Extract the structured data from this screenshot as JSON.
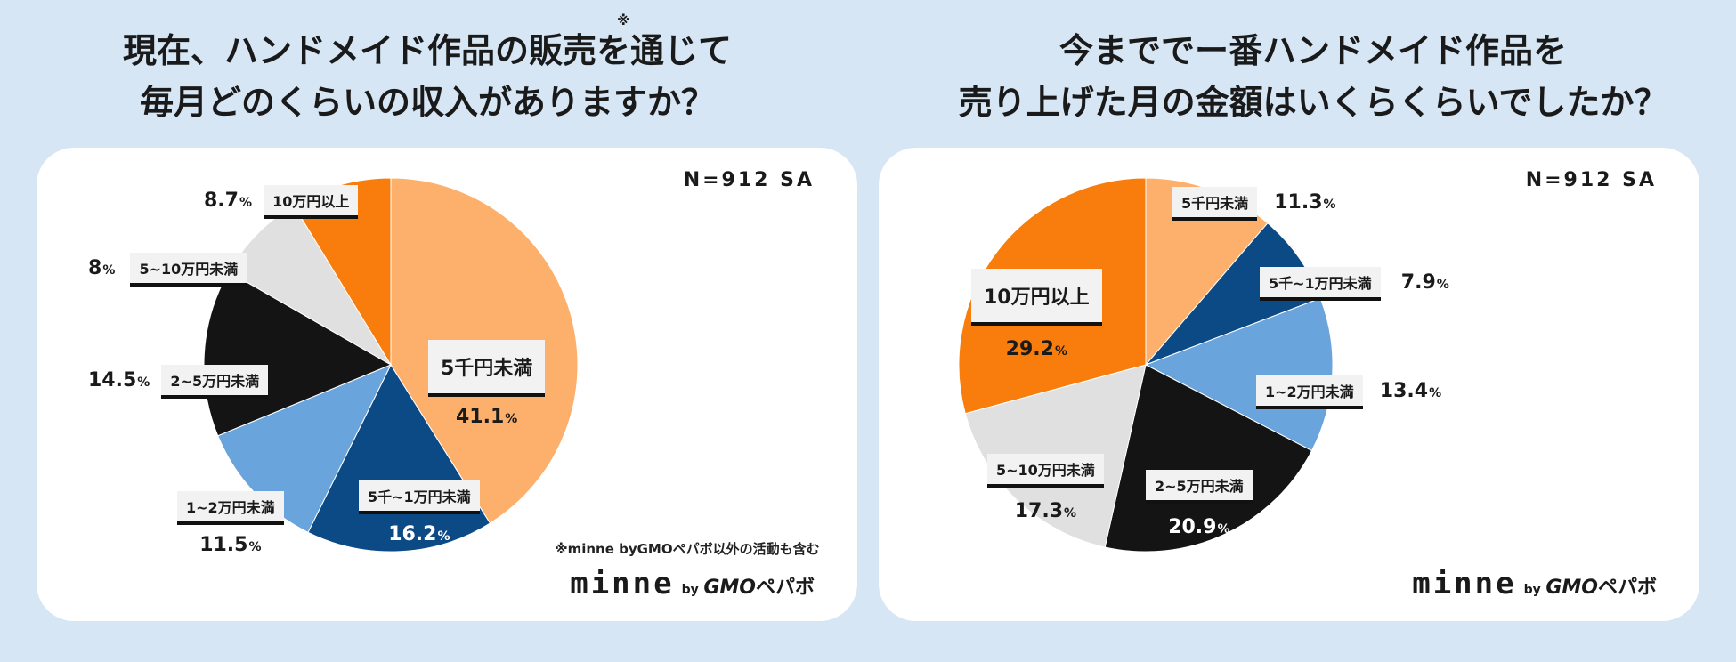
{
  "footnote_mark": "※",
  "chart_data": [
    {
      "type": "pie",
      "title": [
        "現在、ハンドメイド作品の販売を通じて",
        "毎月どのくらいの収入がありますか？"
      ],
      "sample": "N=912 SA",
      "footnote": "※minne byGMOペパボ以外の活動も含む",
      "unit": "%",
      "slices": [
        {
          "label": "5千円未満",
          "value": 41.1,
          "display": "41.1",
          "color": "#fdb06c"
        },
        {
          "label": "5千~1万円未満",
          "value": 16.2,
          "display": "16.2",
          "color": "#0b4a85"
        },
        {
          "label": "1~2万円未満",
          "value": 11.5,
          "display": "11.5",
          "color": "#6aa4dc"
        },
        {
          "label": "2~5万円未満",
          "value": 14.5,
          "display": "14.5",
          "color": "#141414"
        },
        {
          "label": "5~10万円未満",
          "value": 8,
          "display": "8",
          "color": "#e0e0e0"
        },
        {
          "label": "10万円以上",
          "value": 8.7,
          "display": "8.7",
          "color": "#f87d0c"
        }
      ]
    },
    {
      "type": "pie",
      "title": [
        "今まででー番ハンドメイド作品を",
        "売り上げた月の金額はいくらくらいでしたか？"
      ],
      "sample": "N=912 SA",
      "unit": "%",
      "slices": [
        {
          "label": "5千円未満",
          "value": 11.3,
          "display": "11.3",
          "color": "#fdb06c"
        },
        {
          "label": "5千~1万円未満",
          "value": 7.9,
          "display": "7.9",
          "color": "#0b4a85"
        },
        {
          "label": "1~2万円未満",
          "value": 13.4,
          "display": "13.4",
          "color": "#6aa4dc"
        },
        {
          "label": "2~5万円未満",
          "value": 20.9,
          "display": "20.9",
          "color": "#141414"
        },
        {
          "label": "5~10万円未満",
          "value": 17.3,
          "display": "17.3",
          "color": "#e0e0e0"
        },
        {
          "label": "10万円以上",
          "value": 29.2,
          "display": "29.2",
          "color": "#f87d0c"
        }
      ]
    }
  ],
  "logo": {
    "minne": "minne",
    "by": "by",
    "gmo": "GMO",
    "pepabo": "ペパボ"
  }
}
